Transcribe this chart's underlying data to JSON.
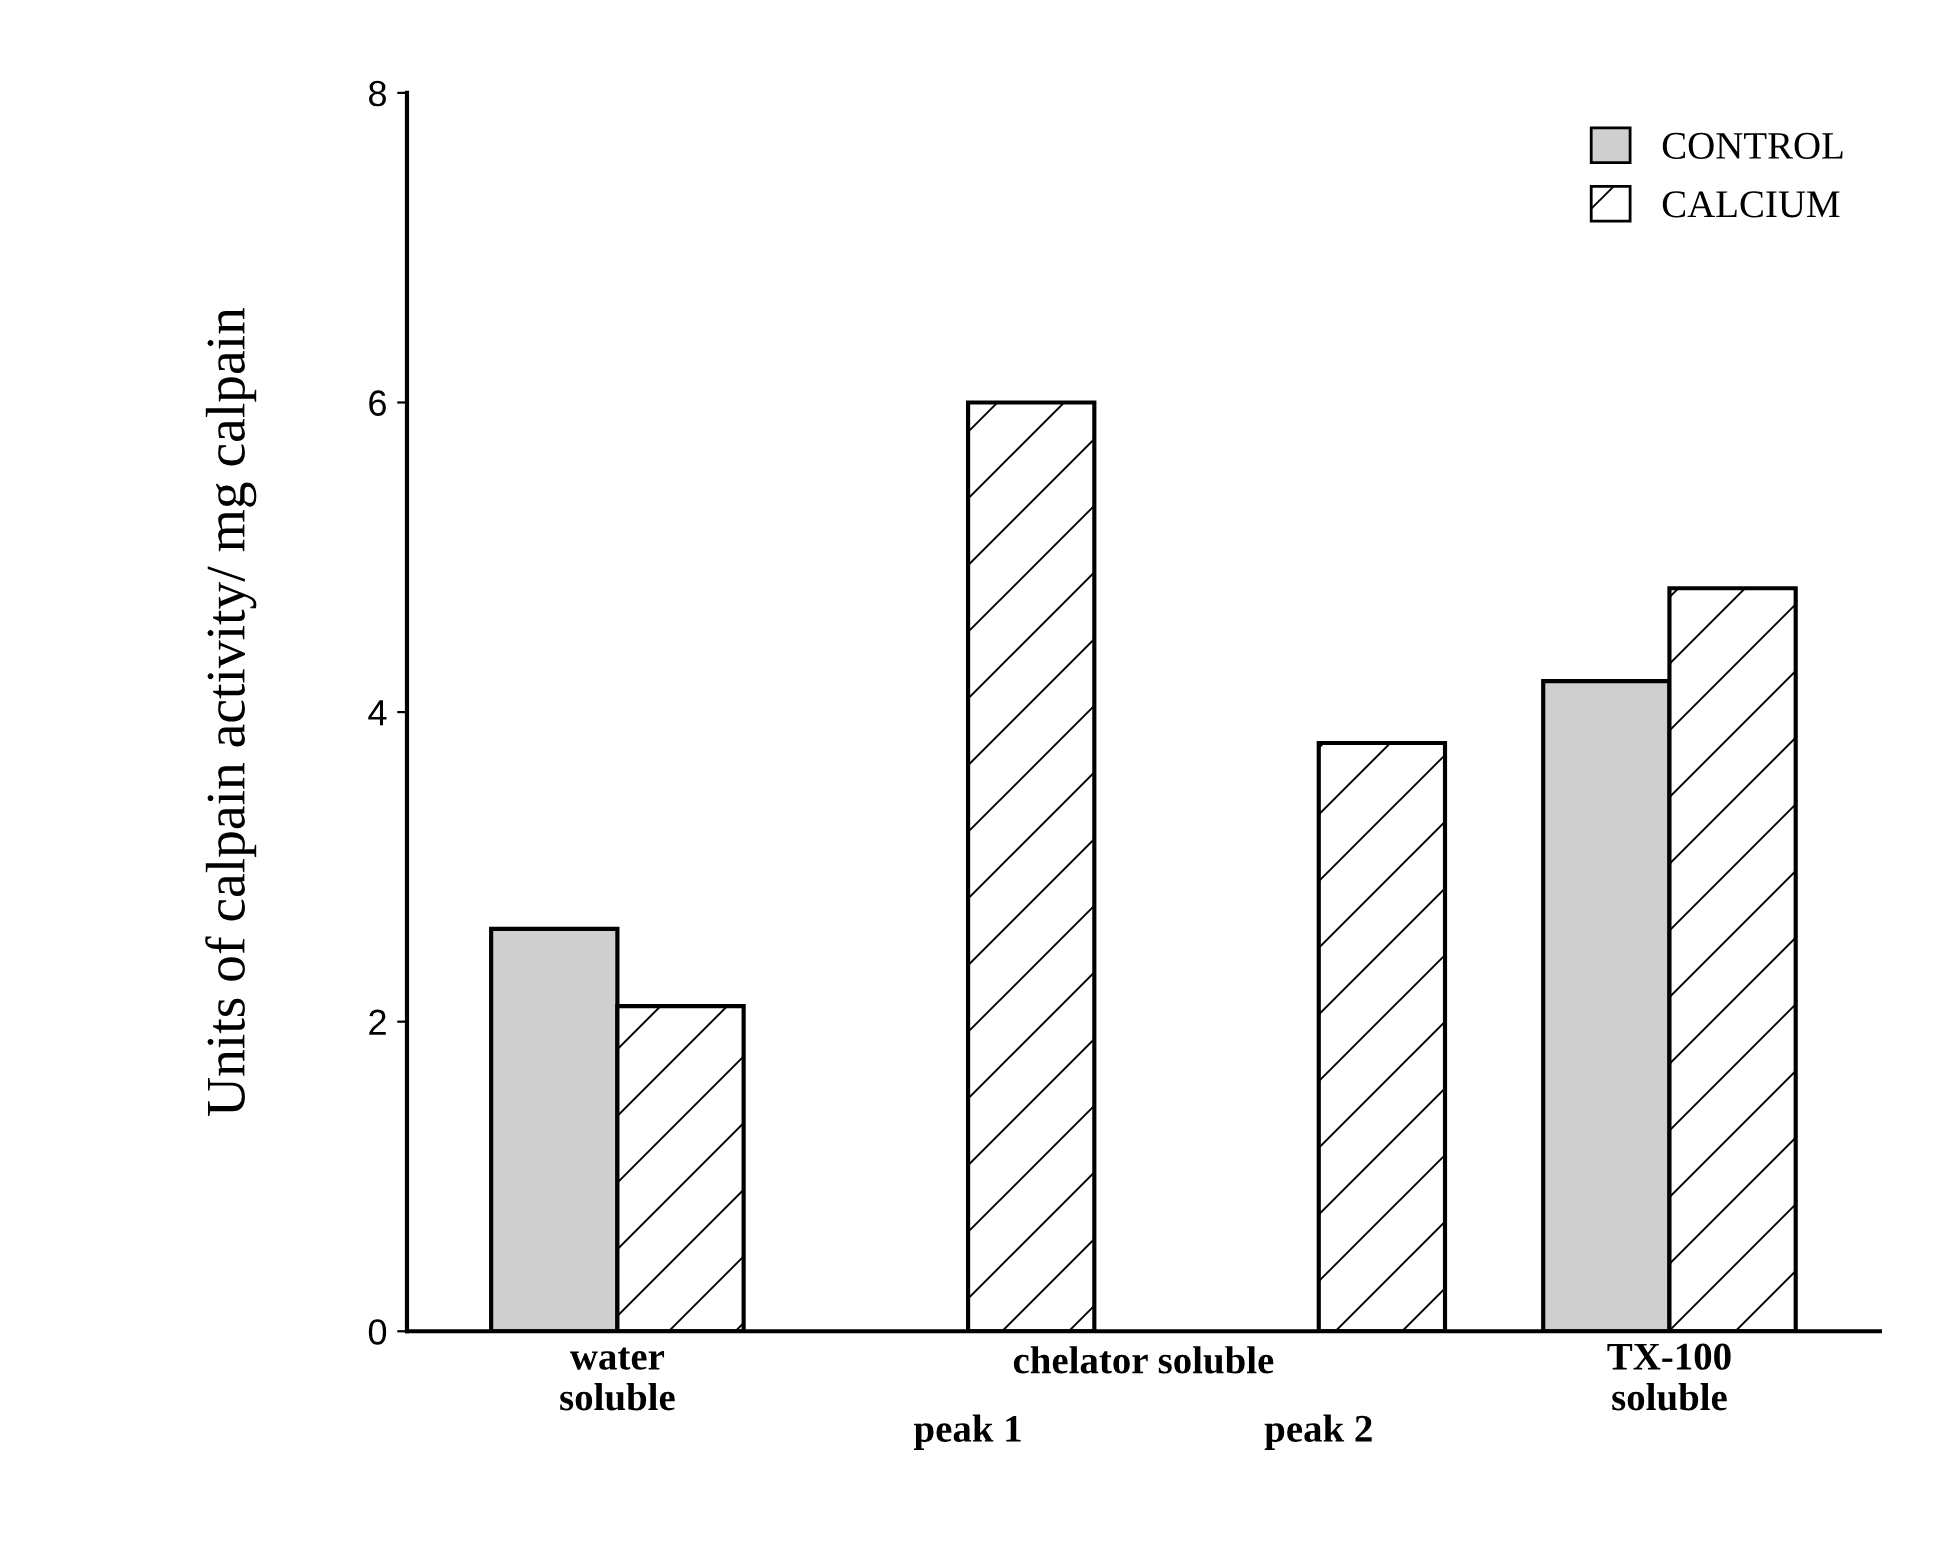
{
  "chart_data": {
    "type": "bar",
    "ylabel": "Units of calpain activity/ mg calpain",
    "categories": [
      "water\nsoluble",
      "peak 1",
      "peak 2",
      "TX-100\nsoluble"
    ],
    "series": [
      {
        "name": "CONTROL",
        "color": "#cfcfcf",
        "values": [
          2.6,
          null,
          null,
          4.2
        ]
      },
      {
        "name": "CALCIUM",
        "color": "#000000",
        "values": [
          2.1,
          6.0,
          3.8,
          4.8
        ]
      }
    ],
    "annotations": [
      {
        "text": "chelator soluble"
      }
    ],
    "ylim": [
      0,
      8
    ],
    "yticks": [
      0,
      2,
      4,
      6,
      8
    ],
    "grid": false,
    "legend": "top right"
  }
}
